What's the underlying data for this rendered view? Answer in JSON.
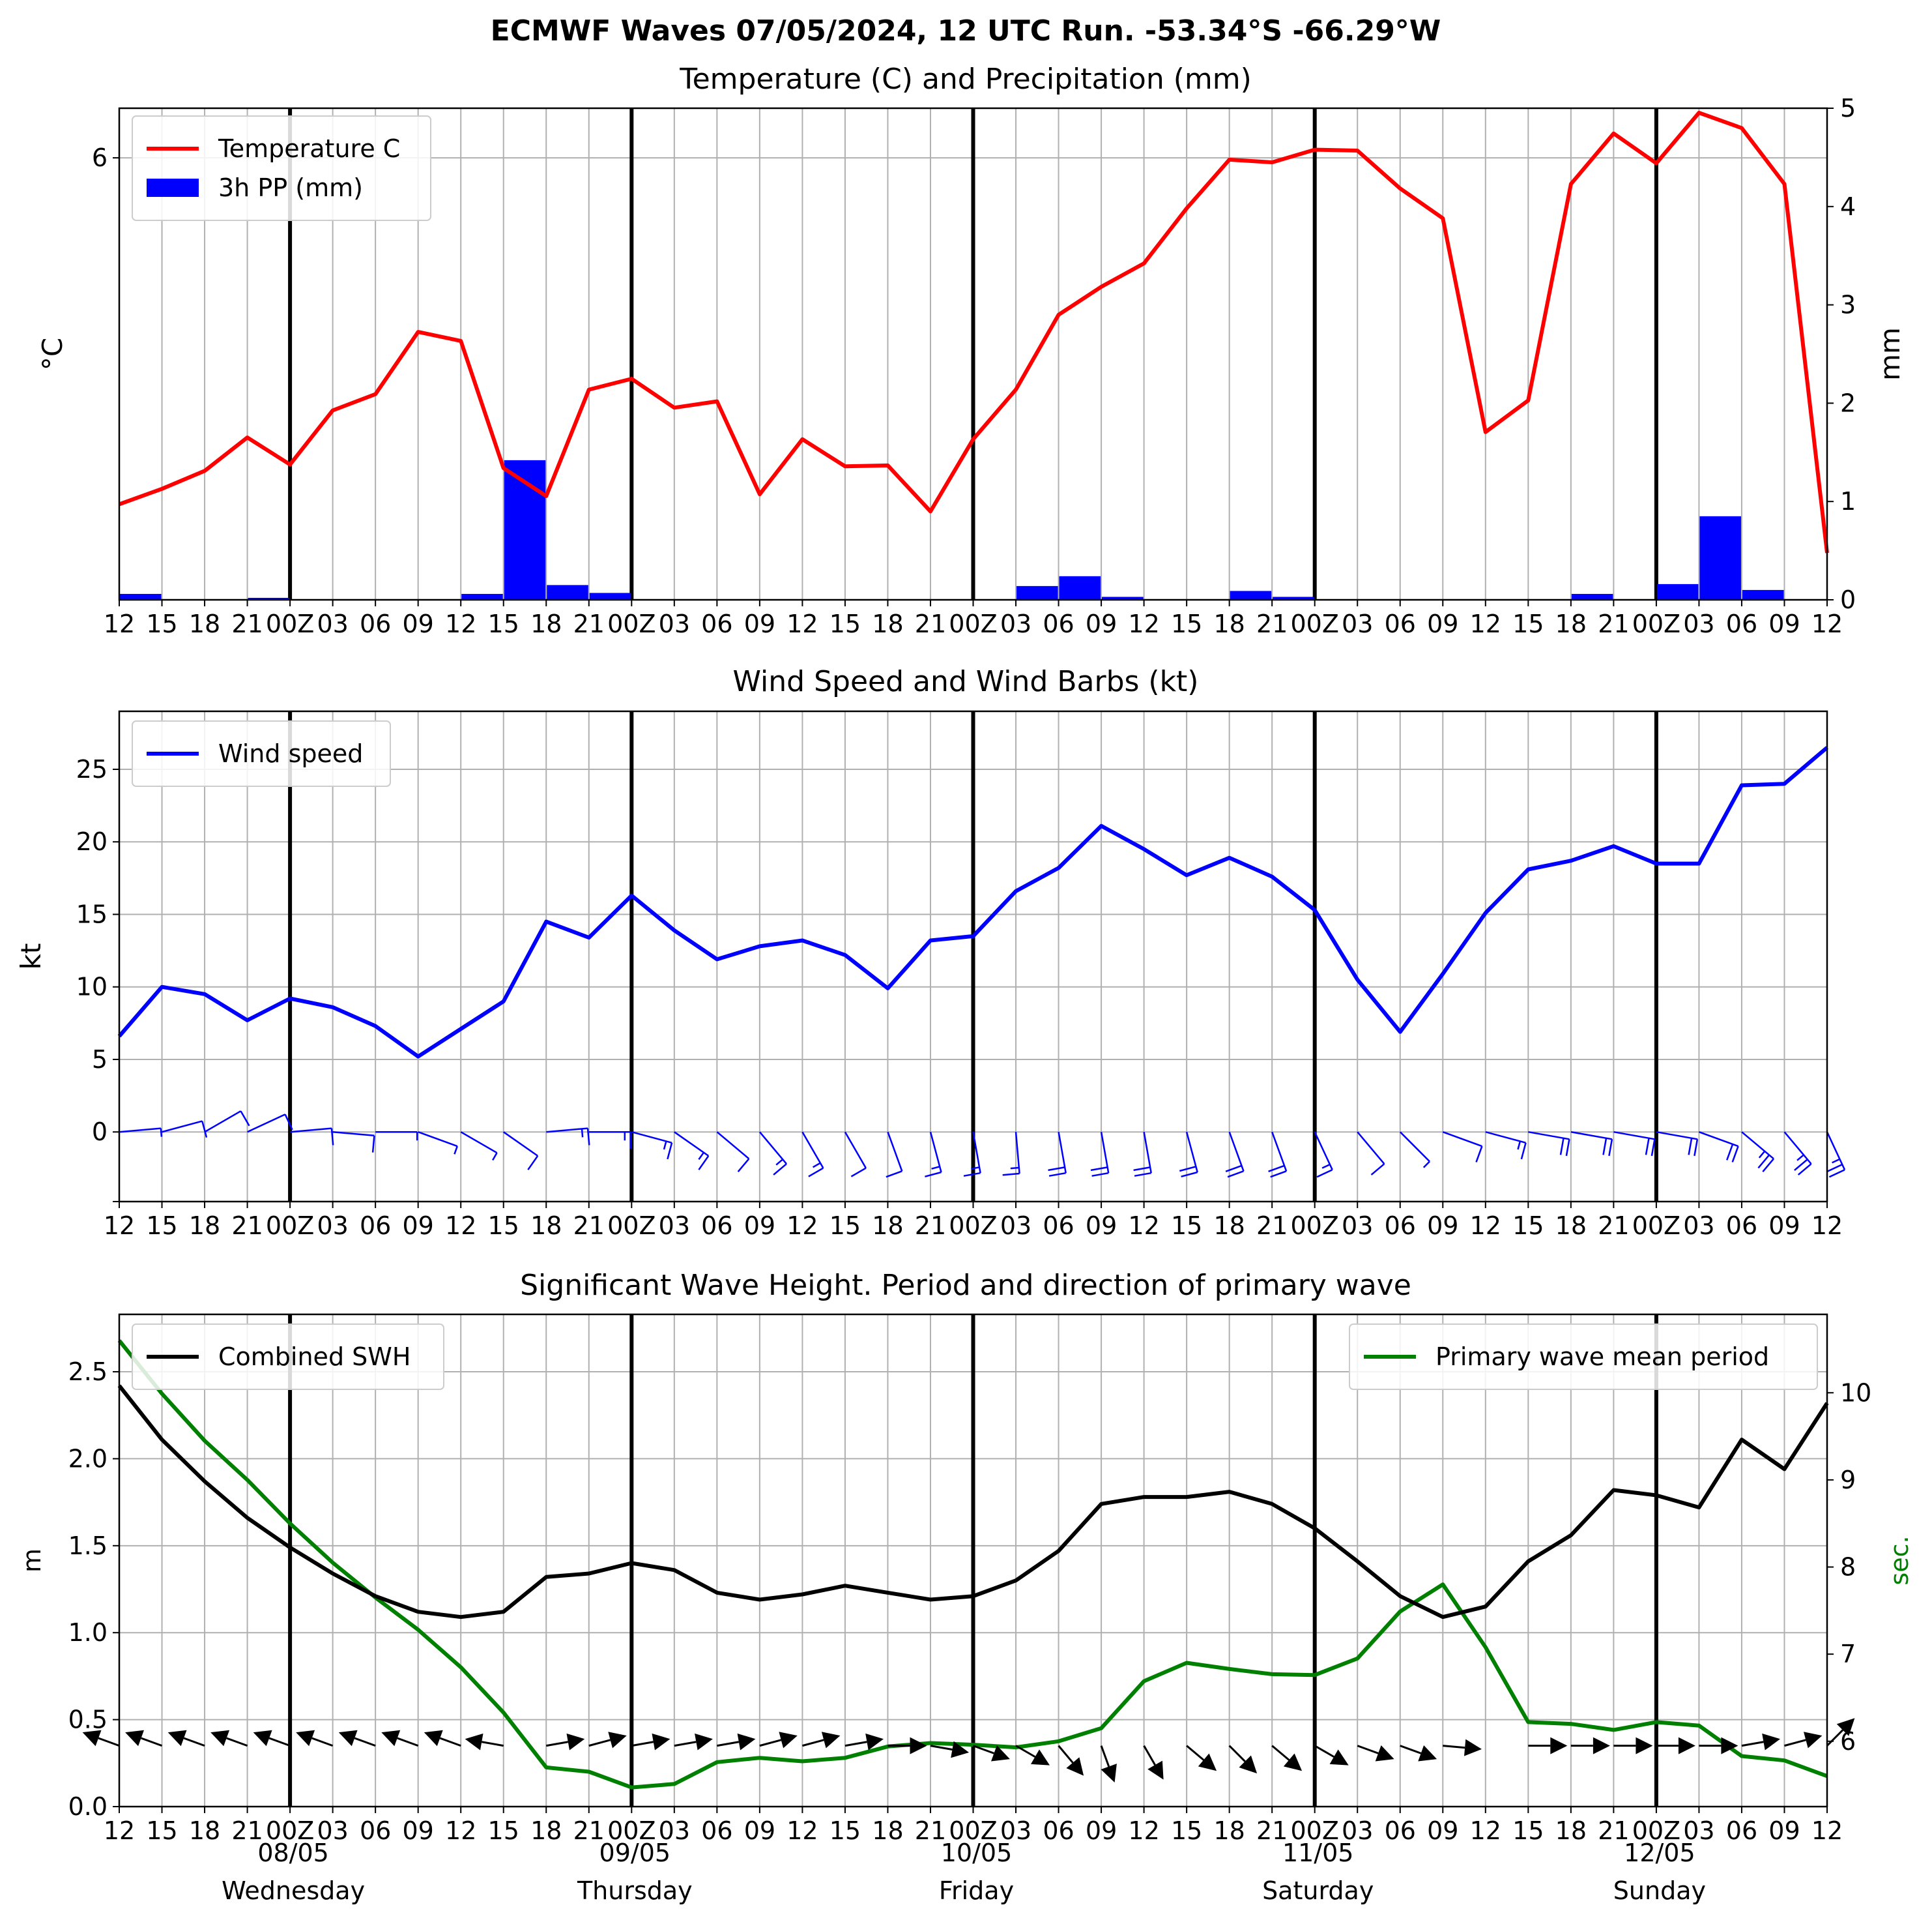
{
  "suptitle": "ECMWF Waves 07/05/2024, 12 UTC Run. -53.34°S -66.29°W",
  "x_tick_labels": [
    "12",
    "15",
    "18",
    "21",
    "00Z",
    "03",
    "06",
    "09",
    "12",
    "15",
    "18",
    "21",
    "00Z",
    "03",
    "06",
    "09",
    "12",
    "15",
    "18",
    "21",
    "00Z",
    "03",
    "06",
    "09",
    "12",
    "15",
    "18",
    "21",
    "00Z",
    "03",
    "06",
    "09",
    "12",
    "15",
    "18",
    "21",
    "00Z",
    "03",
    "06",
    "09",
    "12"
  ],
  "day_labels": [
    {
      "date": "08/05",
      "weekday": "Wednesday"
    },
    {
      "date": "09/05",
      "weekday": "Thursday"
    },
    {
      "date": "10/05",
      "weekday": "Friday"
    },
    {
      "date": "11/05",
      "weekday": "Saturday"
    },
    {
      "date": "12/05",
      "weekday": "Sunday"
    }
  ],
  "colors": {
    "temperature": "#ff0000",
    "precip": "#0000ff",
    "wind": "#0000ff",
    "swh": "#000000",
    "period": "#008000",
    "grid": "#b0b0b0"
  },
  "chart_data": [
    {
      "type": "line",
      "title": "Temperature (C) and Precipitation (mm)",
      "ylabel": "°C",
      "ylabel_right": "mm",
      "ylim": [
        1.1,
        6.55
      ],
      "yticks": [
        6
      ],
      "y2lim": [
        0,
        5
      ],
      "y2ticks": [
        0,
        1,
        2,
        3,
        4,
        5
      ],
      "legend": {
        "placement": "upper-left",
        "entries": [
          "Temperature C",
          "3h PP (mm)"
        ]
      },
      "grid": true,
      "series": [
        {
          "name": "Temperature C",
          "color": "#ff0000",
          "values": [
            2.16,
            2.33,
            2.53,
            2.9,
            2.6,
            3.2,
            3.38,
            4.07,
            3.97,
            2.56,
            2.25,
            3.43,
            3.55,
            3.23,
            3.3,
            2.27,
            2.88,
            2.58,
            2.59,
            2.08,
            2.88,
            3.43,
            4.26,
            4.57,
            4.83,
            5.44,
            5.98,
            5.95,
            6.09,
            6.08,
            5.66,
            5.33,
            2.96,
            3.31,
            5.71,
            6.27,
            5.94,
            6.5,
            6.33,
            5.71,
            1.62
          ]
        },
        {
          "name": "3h PP (mm)",
          "color": "#0000ff",
          "values": [
            0.06,
            0,
            0,
            0.02,
            0,
            0,
            0,
            0,
            0.06,
            1.42,
            0.15,
            0.07,
            0,
            0,
            0,
            0,
            0,
            0,
            0,
            0,
            0,
            0.14,
            0.24,
            0.03,
            0,
            0,
            0.09,
            0.03,
            0,
            0,
            0,
            0,
            0,
            0,
            0.06,
            0,
            0.16,
            0.85,
            0.1,
            0
          ]
        }
      ]
    },
    {
      "type": "line",
      "title": "Wind Speed and Wind Barbs (kt)",
      "ylabel": "kt",
      "ylim": [
        -4.8,
        29
      ],
      "yticks": [
        0,
        5,
        10,
        15,
        20,
        25
      ],
      "legend": {
        "placement": "upper-left",
        "entries": [
          "Wind speed"
        ]
      },
      "grid": true,
      "series": [
        {
          "name": "Wind speed",
          "color": "#0000ff",
          "values": [
            6.6,
            10.0,
            9.5,
            7.7,
            9.2,
            8.6,
            7.3,
            5.2,
            7.1,
            9.0,
            14.5,
            13.4,
            16.3,
            13.9,
            11.9,
            12.8,
            13.2,
            12.2,
            9.9,
            13.2,
            13.5,
            16.6,
            18.2,
            21.1,
            19.5,
            17.7,
            18.9,
            17.6,
            15.3,
            10.5,
            6.9,
            10.9,
            15.1,
            18.1,
            18.7,
            19.7,
            18.5,
            18.5,
            23.9,
            24.0,
            26.5
          ]
        }
      ],
      "barb_directions_deg": [
        265,
        255,
        240,
        245,
        265,
        275,
        270,
        290,
        300,
        305,
        265,
        270,
        285,
        305,
        310,
        320,
        330,
        330,
        340,
        345,
        350,
        355,
        350,
        350,
        350,
        345,
        340,
        340,
        335,
        320,
        315,
        290,
        285,
        280,
        280,
        280,
        280,
        290,
        310,
        320,
        335
      ]
    },
    {
      "type": "line",
      "title": "Significant Wave Height. Period and direction of primary wave",
      "ylabel": "m",
      "ylabel_right": "sec.",
      "ylim": [
        0,
        2.83
      ],
      "yticks": [
        0.0,
        0.5,
        1.0,
        1.5,
        2.0,
        2.5
      ],
      "y2lim": [
        5.25,
        10.9
      ],
      "y2ticks": [
        6,
        7,
        8,
        9,
        10
      ],
      "legend": {
        "placement": "upper-left",
        "entries": [
          "Combined SWH"
        ]
      },
      "legend_right": {
        "placement": "upper-right",
        "entries": [
          "Primary wave mean period"
        ]
      },
      "grid": true,
      "series": [
        {
          "name": "Combined SWH",
          "color": "#000000",
          "values": [
            2.42,
            2.11,
            1.87,
            1.66,
            1.49,
            1.34,
            1.21,
            1.12,
            1.09,
            1.12,
            1.32,
            1.34,
            1.4,
            1.36,
            1.23,
            1.19,
            1.22,
            1.27,
            1.23,
            1.19,
            1.21,
            1.3,
            1.47,
            1.74,
            1.78,
            1.78,
            1.81,
            1.74,
            1.6,
            1.41,
            1.21,
            1.09,
            1.15,
            1.41,
            1.56,
            1.82,
            1.79,
            1.72,
            2.11,
            1.94,
            2.32
          ]
        },
        {
          "name": "Primary wave mean period",
          "color": "#008000",
          "values": [
            10.6,
            9.99,
            9.45,
            9.0,
            8.5,
            8.05,
            7.65,
            7.28,
            6.85,
            6.33,
            5.7,
            5.65,
            5.47,
            5.51,
            5.76,
            5.81,
            5.77,
            5.81,
            5.94,
            5.98,
            5.96,
            5.93,
            6.0,
            6.15,
            6.69,
            6.9,
            6.83,
            6.77,
            6.76,
            6.95,
            7.49,
            7.8,
            7.08,
            6.22,
            6.2,
            6.13,
            6.22,
            6.18,
            5.83,
            5.78,
            5.6
          ]
        }
      ],
      "arrow_directions_deg": [
        290,
        290,
        290,
        290,
        290,
        290,
        290,
        290,
        290,
        280,
        80,
        75,
        80,
        80,
        80,
        75,
        75,
        80,
        90,
        100,
        110,
        120,
        140,
        160,
        150,
        130,
        135,
        130,
        120,
        110,
        110,
        95,
        null,
        90,
        90,
        90,
        90,
        90,
        80,
        75,
        45
      ]
    }
  ]
}
